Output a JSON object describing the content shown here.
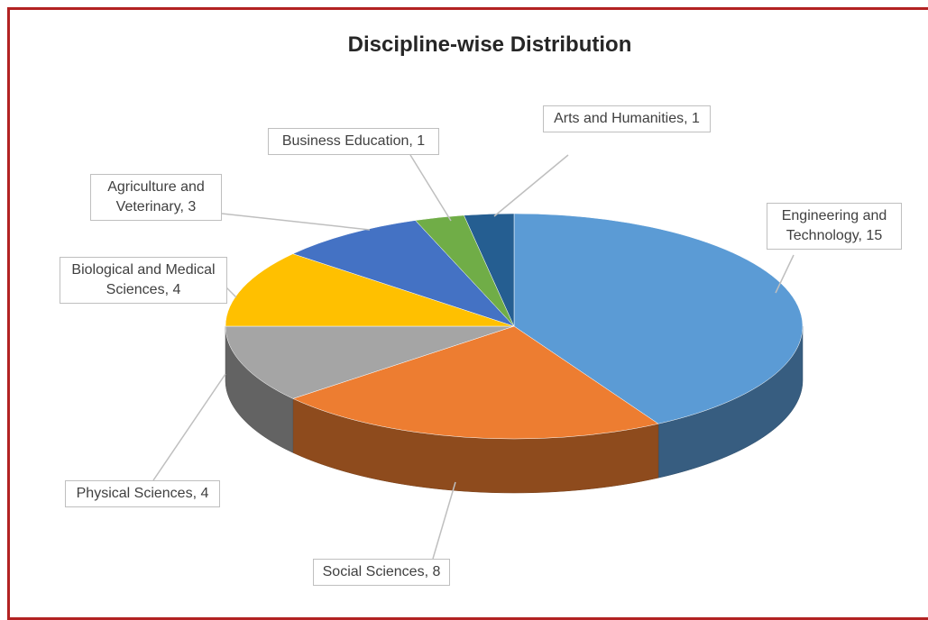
{
  "chart_data": {
    "type": "pie",
    "title": "Discipline-wise Distribution",
    "categories": [
      "Engineering and Technology",
      "Social Sciences",
      "Physical Sciences",
      "Biological and Medical Sciences",
      "Agriculture and Veterinary",
      "Business Education",
      "Arts and Humanities"
    ],
    "values": [
      15,
      8,
      4,
      4,
      3,
      1,
      1
    ],
    "value_labels": [
      "Engineering and Technology, 15",
      "Social Sciences, 8",
      "Physical Sciences, 4",
      "Biological and Medical Sciences, 4",
      "Agriculture and Veterinary, 3",
      "Business Education, 1",
      "Arts and Humanities, 1"
    ],
    "colors": [
      "#5b9bd5",
      "#ed7d31",
      "#a5a5a5",
      "#ffc000",
      "#4472c4",
      "#70ad47",
      "#255e91"
    ]
  }
}
